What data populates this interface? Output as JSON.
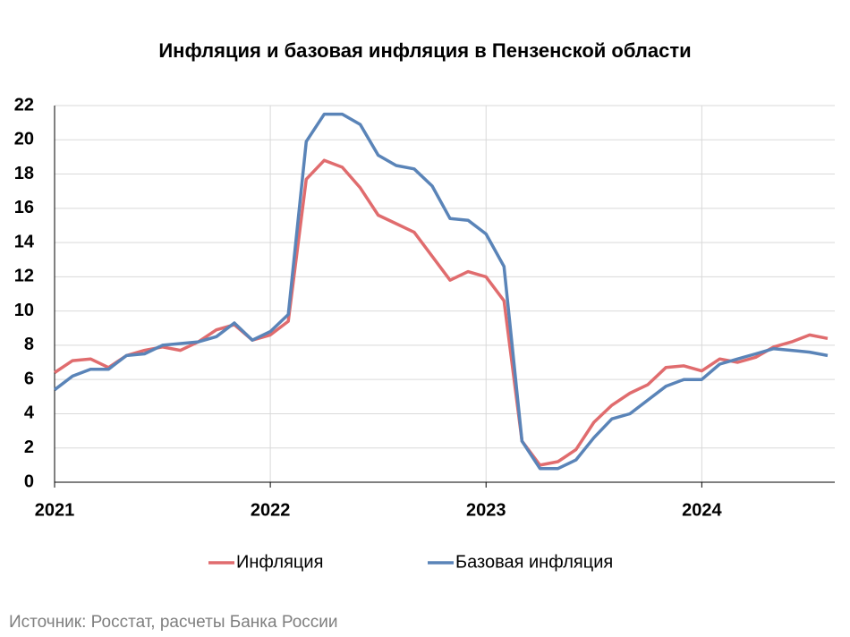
{
  "chart_data": {
    "type": "line",
    "title": "Инфляция и базовая инфляция в Пензенской области",
    "categories": [
      "2021",
      null,
      null,
      null,
      null,
      null,
      null,
      null,
      null,
      null,
      null,
      null,
      "2022",
      null,
      null,
      null,
      null,
      null,
      null,
      null,
      null,
      null,
      null,
      null,
      "2023",
      null,
      null,
      null,
      null,
      null,
      null,
      null,
      null,
      null,
      null,
      null,
      "2024",
      null,
      null,
      null,
      null,
      null,
      null,
      null
    ],
    "series": [
      {
        "name": "Инфляция",
        "color": "#e06c6e",
        "values": [
          6.4,
          7.1,
          7.2,
          6.7,
          7.4,
          7.7,
          7.9,
          7.7,
          8.2,
          8.9,
          9.2,
          8.3,
          8.6,
          9.4,
          17.7,
          18.8,
          18.4,
          17.2,
          15.6,
          15.1,
          14.6,
          13.2,
          11.8,
          12.3,
          12.0,
          10.6,
          2.4,
          1.0,
          1.2,
          1.9,
          3.5,
          4.5,
          5.2,
          5.7,
          6.7,
          6.8,
          6.5,
          7.2,
          7.0,
          7.3,
          7.9,
          8.2,
          8.6,
          8.4
        ]
      },
      {
        "name": "Базовая инфляция",
        "color": "#5a84b8",
        "values": [
          5.4,
          6.2,
          6.6,
          6.6,
          7.4,
          7.5,
          8.0,
          8.1,
          8.2,
          8.5,
          9.3,
          8.3,
          8.8,
          9.8,
          19.9,
          21.5,
          21.5,
          20.9,
          19.1,
          18.5,
          18.3,
          17.3,
          15.4,
          15.3,
          14.5,
          12.6,
          2.4,
          0.8,
          0.8,
          1.3,
          2.6,
          3.7,
          4.0,
          4.8,
          5.6,
          6.0,
          6.0,
          6.9,
          7.2,
          7.5,
          7.8,
          7.7,
          7.6,
          7.4
        ]
      }
    ],
    "ylim": [
      0,
      22
    ],
    "yticks": [
      0,
      2,
      4,
      6,
      8,
      10,
      12,
      14,
      16,
      18,
      20,
      22
    ],
    "grid": true,
    "legend": "bottom",
    "source": "Источник: Росстат, расчеты Банка России"
  }
}
